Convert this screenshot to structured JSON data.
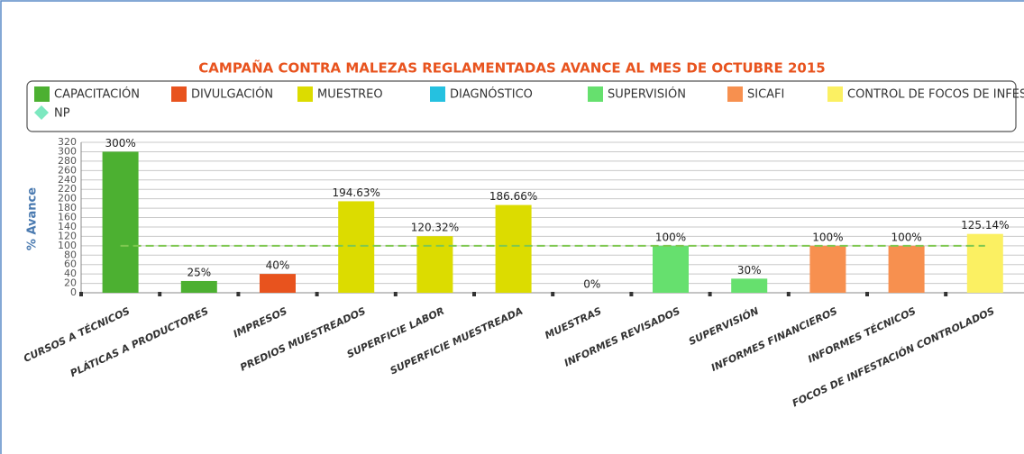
{
  "chart_data": {
    "type": "bar",
    "title": "CAMPAÑA CONTRA MALEZAS REGLAMENTADAS AVANCE AL MES DE OCTUBRE 2015",
    "y_label": "% Avance",
    "categories": [
      "CURSOS A TÉCNICOS",
      "PLÁTICAS A PRODUCTORES",
      "IMPRESOS",
      "PREDIOS MUESTREADOS",
      "SUPERFICIE LABOR",
      "SUPERFICIE MUESTREADA",
      "MUESTRAS",
      "INFORMES REVISADOS",
      "SUPERVISIÓN",
      "INFORMES FINANCIEROS",
      "INFORMES TÉCNICOS",
      "FOCOS DE INFESTACIÓN CONTROLADOS"
    ],
    "series": [
      {
        "name": "CAPACITACIÓN",
        "color": "#4cb031",
        "values": [
          300,
          25,
          null,
          null,
          null,
          null,
          null,
          null,
          null,
          null,
          null,
          null
        ],
        "value_labels": [
          "300%",
          "25%",
          null,
          null,
          null,
          null,
          null,
          null,
          null,
          null,
          null,
          null
        ]
      },
      {
        "name": "DIVULGACIÓN",
        "color": "#e8531e",
        "values": [
          null,
          null,
          40,
          null,
          null,
          null,
          null,
          null,
          null,
          null,
          null,
          null
        ],
        "value_labels": [
          null,
          null,
          "40%",
          null,
          null,
          null,
          null,
          null,
          null,
          null,
          null,
          null
        ]
      },
      {
        "name": "MUESTREO",
        "color": "#dcdc00",
        "values": [
          null,
          null,
          null,
          194.63,
          120.32,
          186.66,
          null,
          null,
          null,
          null,
          null,
          null
        ],
        "value_labels": [
          null,
          null,
          null,
          "194.63%",
          "120.32%",
          "186.66%",
          null,
          null,
          null,
          null,
          null,
          null
        ]
      },
      {
        "name": "DIAGNÓSTICO",
        "color": "#25c1e0",
        "values": [
          null,
          null,
          null,
          null,
          null,
          null,
          0,
          null,
          null,
          null,
          null,
          null
        ],
        "value_labels": [
          null,
          null,
          null,
          null,
          null,
          null,
          "0%",
          null,
          null,
          null,
          null,
          null
        ]
      },
      {
        "name": "SUPERVISIÓN",
        "color": "#66e06e",
        "values": [
          null,
          null,
          null,
          null,
          null,
          null,
          null,
          100,
          30,
          null,
          null,
          null
        ],
        "value_labels": [
          null,
          null,
          null,
          null,
          null,
          null,
          null,
          "100%",
          "30%",
          null,
          null,
          null
        ]
      },
      {
        "name": "SICAFI",
        "color": "#f7904f",
        "values": [
          null,
          null,
          null,
          null,
          null,
          null,
          null,
          null,
          null,
          100,
          100,
          null
        ],
        "value_labels": [
          null,
          null,
          null,
          null,
          null,
          null,
          null,
          null,
          null,
          "100%",
          "100%",
          null
        ]
      },
      {
        "name": "CONTROL DE FOCOS DE INFESTACIÓN",
        "color": "#fbf062",
        "values": [
          null,
          null,
          null,
          null,
          null,
          null,
          null,
          null,
          null,
          null,
          null,
          125.14
        ],
        "value_labels": [
          null,
          null,
          null,
          null,
          null,
          null,
          null,
          null,
          null,
          null,
          null,
          "125.14%"
        ]
      },
      {
        "name": "NP",
        "color": "#7de8c0",
        "line_color": "#7ec850",
        "type": "line",
        "values": [
          100,
          100,
          100,
          100,
          100,
          100,
          100,
          100,
          100,
          100,
          100,
          100
        ]
      }
    ],
    "ylim": [
      0,
      320
    ],
    "yticks": [
      0,
      20,
      40,
      60,
      80,
      100,
      120,
      140,
      160,
      180,
      200,
      220,
      240,
      260,
      280,
      300,
      320
    ],
    "grid": true,
    "legend": "top"
  }
}
